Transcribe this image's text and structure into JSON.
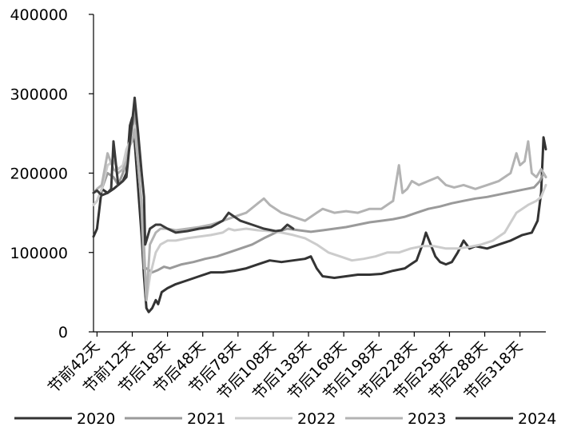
{
  "chart_data": {
    "type": "line",
    "title": "",
    "xlabel": "",
    "ylabel": "",
    "ylim": [
      0,
      400000
    ],
    "yticks": [
      0,
      100000,
      200000,
      300000,
      400000
    ],
    "x_range": [
      -45,
      340
    ],
    "xtick_labels": [
      {
        "x": -42,
        "label": "节前42天"
      },
      {
        "x": -12,
        "label": "节前12天"
      },
      {
        "x": 18,
        "label": "节后18天"
      },
      {
        "x": 48,
        "label": "节后48天"
      },
      {
        "x": 78,
        "label": "节后78天"
      },
      {
        "x": 108,
        "label": "节后108天"
      },
      {
        "x": 138,
        "label": "节后138天"
      },
      {
        "x": 168,
        "label": "节后168天"
      },
      {
        "x": 198,
        "label": "节后198天"
      },
      {
        "x": 228,
        "label": "节后228天"
      },
      {
        "x": 258,
        "label": "节后258天"
      },
      {
        "x": 288,
        "label": "节后288天"
      },
      {
        "x": 318,
        "label": "节后318天"
      }
    ],
    "legend_position": "bottom",
    "series": [
      {
        "name": "2020",
        "color": "#333333",
        "points": [
          [
            -45,
            120000
          ],
          [
            -42,
            130000
          ],
          [
            -38,
            180000
          ],
          [
            -33,
            175000
          ],
          [
            -28,
            180000
          ],
          [
            -24,
            185000
          ],
          [
            -20,
            190000
          ],
          [
            -17,
            200000
          ],
          [
            -14,
            260000
          ],
          [
            -12,
            270000
          ],
          [
            -10,
            240000
          ],
          [
            -7,
            180000
          ],
          [
            -4,
            120000
          ],
          [
            -2,
            70000
          ],
          [
            0,
            30000
          ],
          [
            2,
            25000
          ],
          [
            5,
            30000
          ],
          [
            8,
            40000
          ],
          [
            10,
            35000
          ],
          [
            13,
            50000
          ],
          [
            18,
            55000
          ],
          [
            25,
            60000
          ],
          [
            35,
            65000
          ],
          [
            45,
            70000
          ],
          [
            55,
            75000
          ],
          [
            65,
            75000
          ],
          [
            75,
            77000
          ],
          [
            85,
            80000
          ],
          [
            95,
            85000
          ],
          [
            105,
            90000
          ],
          [
            115,
            88000
          ],
          [
            125,
            90000
          ],
          [
            135,
            92000
          ],
          [
            140,
            95000
          ],
          [
            145,
            80000
          ],
          [
            150,
            70000
          ],
          [
            160,
            68000
          ],
          [
            170,
            70000
          ],
          [
            180,
            72000
          ],
          [
            190,
            72000
          ],
          [
            200,
            73000
          ],
          [
            210,
            77000
          ],
          [
            220,
            80000
          ],
          [
            225,
            85000
          ],
          [
            230,
            90000
          ],
          [
            235,
            110000
          ],
          [
            238,
            125000
          ],
          [
            242,
            110000
          ],
          [
            246,
            95000
          ],
          [
            250,
            88000
          ],
          [
            255,
            85000
          ],
          [
            260,
            88000
          ],
          [
            265,
            100000
          ],
          [
            270,
            115000
          ],
          [
            275,
            105000
          ],
          [
            280,
            108000
          ],
          [
            290,
            105000
          ],
          [
            300,
            110000
          ],
          [
            310,
            115000
          ],
          [
            320,
            122000
          ],
          [
            328,
            125000
          ],
          [
            333,
            140000
          ],
          [
            336,
            175000
          ],
          [
            338,
            245000
          ],
          [
            340,
            230000
          ]
        ]
      },
      {
        "name": "2021",
        "color": "#9a9a9a",
        "points": [
          [
            -45,
            160000
          ],
          [
            -42,
            165000
          ],
          [
            -38,
            180000
          ],
          [
            -33,
            200000
          ],
          [
            -28,
            195000
          ],
          [
            -24,
            185000
          ],
          [
            -20,
            200000
          ],
          [
            -17,
            215000
          ],
          [
            -14,
            240000
          ],
          [
            -12,
            250000
          ],
          [
            -10,
            285000
          ],
          [
            -7,
            220000
          ],
          [
            -4,
            150000
          ],
          [
            -2,
            80000
          ],
          [
            0,
            80000
          ],
          [
            5,
            75000
          ],
          [
            10,
            78000
          ],
          [
            15,
            82000
          ],
          [
            20,
            80000
          ],
          [
            30,
            85000
          ],
          [
            40,
            88000
          ],
          [
            50,
            92000
          ],
          [
            60,
            95000
          ],
          [
            70,
            100000
          ],
          [
            80,
            105000
          ],
          [
            90,
            110000
          ],
          [
            100,
            118000
          ],
          [
            110,
            125000
          ],
          [
            120,
            130000
          ],
          [
            130,
            128000
          ],
          [
            140,
            126000
          ],
          [
            150,
            128000
          ],
          [
            160,
            130000
          ],
          [
            170,
            132000
          ],
          [
            180,
            135000
          ],
          [
            190,
            138000
          ],
          [
            200,
            140000
          ],
          [
            210,
            142000
          ],
          [
            220,
            145000
          ],
          [
            230,
            150000
          ],
          [
            240,
            155000
          ],
          [
            250,
            158000
          ],
          [
            260,
            162000
          ],
          [
            270,
            165000
          ],
          [
            280,
            168000
          ],
          [
            290,
            170000
          ],
          [
            300,
            173000
          ],
          [
            310,
            176000
          ],
          [
            320,
            179000
          ],
          [
            330,
            182000
          ],
          [
            335,
            190000
          ],
          [
            338,
            200000
          ],
          [
            340,
            195000
          ]
        ]
      },
      {
        "name": "2022",
        "color": "#cccccc",
        "points": [
          [
            -45,
            160000
          ],
          [
            -42,
            165000
          ],
          [
            -38,
            180000
          ],
          [
            -33,
            210000
          ],
          [
            -28,
            215000
          ],
          [
            -24,
            205000
          ],
          [
            -20,
            210000
          ],
          [
            -17,
            230000
          ],
          [
            -14,
            240000
          ],
          [
            -12,
            255000
          ],
          [
            -10,
            260000
          ],
          [
            -7,
            210000
          ],
          [
            -4,
            160000
          ],
          [
            -2,
            100000
          ],
          [
            0,
            40000
          ],
          [
            3,
            70000
          ],
          [
            8,
            100000
          ],
          [
            12,
            110000
          ],
          [
            18,
            115000
          ],
          [
            25,
            115000
          ],
          [
            35,
            118000
          ],
          [
            45,
            120000
          ],
          [
            55,
            122000
          ],
          [
            65,
            125000
          ],
          [
            70,
            130000
          ],
          [
            75,
            128000
          ],
          [
            85,
            130000
          ],
          [
            95,
            128000
          ],
          [
            105,
            127000
          ],
          [
            115,
            125000
          ],
          [
            125,
            122000
          ],
          [
            135,
            118000
          ],
          [
            145,
            110000
          ],
          [
            155,
            100000
          ],
          [
            165,
            95000
          ],
          [
            175,
            90000
          ],
          [
            185,
            92000
          ],
          [
            195,
            95000
          ],
          [
            205,
            100000
          ],
          [
            215,
            100000
          ],
          [
            225,
            105000
          ],
          [
            235,
            108000
          ],
          [
            245,
            108000
          ],
          [
            255,
            105000
          ],
          [
            265,
            105000
          ],
          [
            275,
            107000
          ],
          [
            285,
            110000
          ],
          [
            295,
            115000
          ],
          [
            305,
            125000
          ],
          [
            315,
            150000
          ],
          [
            325,
            160000
          ],
          [
            332,
            165000
          ],
          [
            336,
            170000
          ],
          [
            340,
            185000
          ]
        ]
      },
      {
        "name": "2023",
        "color": "#b3b3b3",
        "points": [
          [
            -45,
            175000
          ],
          [
            -42,
            180000
          ],
          [
            -38,
            185000
          ],
          [
            -33,
            225000
          ],
          [
            -28,
            205000
          ],
          [
            -24,
            200000
          ],
          [
            -20,
            205000
          ],
          [
            -17,
            215000
          ],
          [
            -14,
            235000
          ],
          [
            -12,
            240000
          ],
          [
            -10,
            255000
          ],
          [
            -7,
            210000
          ],
          [
            -4,
            160000
          ],
          [
            -2,
            110000
          ],
          [
            0,
            40000
          ],
          [
            3,
            110000
          ],
          [
            8,
            125000
          ],
          [
            12,
            130000
          ],
          [
            18,
            130000
          ],
          [
            25,
            128000
          ],
          [
            35,
            130000
          ],
          [
            45,
            132000
          ],
          [
            55,
            135000
          ],
          [
            65,
            140000
          ],
          [
            75,
            145000
          ],
          [
            85,
            150000
          ],
          [
            95,
            162000
          ],
          [
            100,
            168000
          ],
          [
            105,
            160000
          ],
          [
            115,
            150000
          ],
          [
            125,
            145000
          ],
          [
            135,
            140000
          ],
          [
            145,
            150000
          ],
          [
            150,
            155000
          ],
          [
            160,
            150000
          ],
          [
            170,
            152000
          ],
          [
            180,
            150000
          ],
          [
            190,
            155000
          ],
          [
            200,
            155000
          ],
          [
            210,
            165000
          ],
          [
            215,
            210000
          ],
          [
            218,
            175000
          ],
          [
            222,
            180000
          ],
          [
            226,
            190000
          ],
          [
            232,
            185000
          ],
          [
            240,
            190000
          ],
          [
            248,
            195000
          ],
          [
            255,
            185000
          ],
          [
            262,
            182000
          ],
          [
            270,
            185000
          ],
          [
            280,
            180000
          ],
          [
            290,
            185000
          ],
          [
            300,
            190000
          ],
          [
            310,
            200000
          ],
          [
            315,
            225000
          ],
          [
            318,
            210000
          ],
          [
            322,
            215000
          ],
          [
            325,
            240000
          ],
          [
            328,
            200000
          ],
          [
            332,
            195000
          ],
          [
            336,
            205000
          ],
          [
            340,
            195000
          ]
        ]
      },
      {
        "name": "2024",
        "color": "#3a3a3a",
        "points": [
          [
            -45,
            175000
          ],
          [
            -42,
            178000
          ],
          [
            -38,
            172000
          ],
          [
            -33,
            175000
          ],
          [
            -30,
            180000
          ],
          [
            -28,
            240000
          ],
          [
            -24,
            185000
          ],
          [
            -20,
            190000
          ],
          [
            -17,
            195000
          ],
          [
            -14,
            240000
          ],
          [
            -12,
            265000
          ],
          [
            -10,
            295000
          ],
          [
            -7,
            250000
          ],
          [
            -4,
            200000
          ],
          [
            -2,
            170000
          ],
          [
            -1,
            110000
          ],
          [
            0,
            115000
          ],
          [
            3,
            130000
          ],
          [
            8,
            135000
          ],
          [
            12,
            135000
          ],
          [
            18,
            130000
          ],
          [
            25,
            125000
          ],
          [
            35,
            127000
          ],
          [
            45,
            130000
          ],
          [
            55,
            132000
          ],
          [
            65,
            140000
          ],
          [
            70,
            150000
          ],
          [
            75,
            145000
          ],
          [
            80,
            140000
          ],
          [
            90,
            135000
          ],
          [
            100,
            130000
          ],
          [
            110,
            127000
          ],
          [
            115,
            128000
          ],
          [
            120,
            135000
          ],
          [
            125,
            130000
          ]
        ]
      }
    ]
  }
}
